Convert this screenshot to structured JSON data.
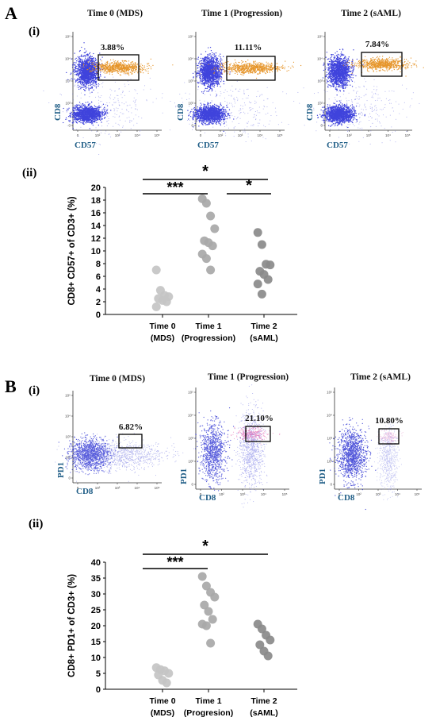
{
  "figure": {
    "panel_a": {
      "letter": "A",
      "sub_i": "(i)",
      "sub_ii": "(ii)",
      "flow_y_axis": "CD8",
      "flow_x_axis": "CD57",
      "flow_titles": [
        "Time 0 (MDS)",
        "Time 1 (Progression)",
        "Time 2 (sAML)"
      ],
      "gate_percents": [
        "3.88%",
        "11.11%",
        "7.84%"
      ],
      "tick_labels": [
        "0",
        "10²",
        "10³",
        "10⁴",
        "10⁵"
      ]
    },
    "panel_b": {
      "letter": "B",
      "sub_i": "(i)",
      "sub_ii": "(ii)",
      "flow_y_axis": "PD1",
      "flow_x_axis": "CD8",
      "flow_titles": [
        "Time 0 (MDS)",
        "Time 1 (Progression)",
        "Time 2 (sAML)"
      ],
      "gate_percents": [
        "6.82%",
        "21.10%",
        "10.80%"
      ],
      "tick_labels": [
        "0",
        "10²",
        "10³",
        "10⁴",
        "10⁵"
      ]
    }
  },
  "chart_data": [
    {
      "type": "scatter",
      "title": "",
      "ylabel": "CD8+ CD57+ of CD3+ (%)",
      "xlabel": "",
      "ylim": [
        0,
        20
      ],
      "yticks": [
        0,
        2,
        4,
        6,
        8,
        10,
        12,
        14,
        16,
        18,
        20
      ],
      "categories": [
        {
          "line1": "Time 0",
          "line2": "(MDS)"
        },
        {
          "line1": "Time 1",
          "line2": "(Progression)"
        },
        {
          "line1": "Time 2",
          "line2": "(sAML)"
        }
      ],
      "series": [
        {
          "values": [
            7.0,
            3.8,
            3.0,
            2.8,
            2.5,
            2.2,
            2.0,
            1.2
          ],
          "color": "#c4c4c4"
        },
        {
          "values": [
            18.2,
            17.5,
            15.5,
            13.5,
            11.6,
            11.3,
            10.8,
            9.5,
            8.8,
            7.0
          ],
          "color": "#a8a8a8"
        },
        {
          "values": [
            12.9,
            11.0,
            7.9,
            7.8,
            6.8,
            6.3,
            5.5,
            4.8,
            3.2
          ],
          "color": "#8a8a8a"
        }
      ],
      "significance": [
        {
          "from": 0,
          "to": 2,
          "label": "*"
        },
        {
          "from": 0,
          "to": 1,
          "label": "***"
        },
        {
          "from": 1,
          "to": 2,
          "label": "*"
        }
      ]
    },
    {
      "type": "scatter",
      "title": "",
      "ylabel": "CD8+ PD1+  of CD3+ (%)",
      "xlabel": "",
      "ylim": [
        0,
        40
      ],
      "yticks": [
        0,
        5,
        10,
        15,
        20,
        25,
        30,
        35,
        40
      ],
      "categories": [
        {
          "line1": "Time 0",
          "line2": "(MDS)"
        },
        {
          "line1": "Time 1",
          "line2": "(Progresion)"
        },
        {
          "line1": "Time 2",
          "line2": "(sAML)"
        }
      ],
      "series": [
        {
          "values": [
            6.8,
            6.2,
            5.8,
            5.0,
            4.5,
            2.8,
            2.0
          ],
          "color": "#c4c4c4"
        },
        {
          "values": [
            35.5,
            32.5,
            30.5,
            29.0,
            26.5,
            24.5,
            22.0,
            20.5,
            20.0,
            14.5
          ],
          "color": "#a8a8a8"
        },
        {
          "values": [
            20.5,
            19.0,
            17.0,
            15.5,
            14.0,
            12.0,
            10.5
          ],
          "color": "#8a8a8a"
        }
      ],
      "significance": [
        {
          "from": 0,
          "to": 2,
          "label": "*"
        },
        {
          "from": 0,
          "to": 1,
          "label": "***"
        }
      ]
    }
  ]
}
